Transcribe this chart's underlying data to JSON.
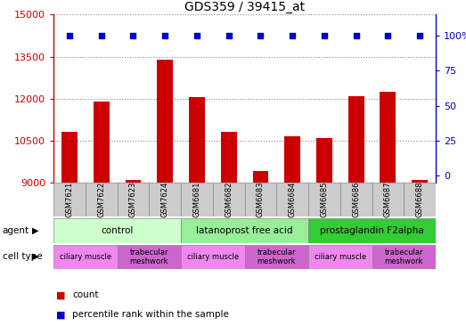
{
  "title": "GDS359 / 39415_at",
  "samples": [
    "GSM7621",
    "GSM7622",
    "GSM7623",
    "GSM7624",
    "GSM6681",
    "GSM6682",
    "GSM6683",
    "GSM6684",
    "GSM6685",
    "GSM6686",
    "GSM6687",
    "GSM6688"
  ],
  "counts": [
    10800,
    11900,
    9100,
    13400,
    12050,
    10800,
    9400,
    10650,
    10600,
    12100,
    12250,
    9100
  ],
  "percentiles": [
    100,
    100,
    100,
    100,
    100,
    100,
    100,
    100,
    100,
    100,
    100,
    100
  ],
  "ylim": [
    9000,
    15000
  ],
  "yticks_left": [
    9000,
    10500,
    12000,
    13500,
    15000
  ],
  "yticks_right": [
    0,
    25,
    50,
    75,
    100
  ],
  "bar_color": "#cc0000",
  "dot_color": "#0000cc",
  "agent_groups": [
    {
      "label": "control",
      "start": 0,
      "end": 3,
      "color": "#ccffcc"
    },
    {
      "label": "latanoprost free acid",
      "start": 4,
      "end": 7,
      "color": "#99ee99"
    },
    {
      "label": "prostaglandin F2alpha",
      "start": 8,
      "end": 11,
      "color": "#33cc33"
    }
  ],
  "cell_type_groups": [
    {
      "label": "ciliary muscle",
      "start": 0,
      "end": 1,
      "color": "#ee88ee"
    },
    {
      "label": "trabecular\nmeshwork",
      "start": 2,
      "end": 3,
      "color": "#cc66cc"
    },
    {
      "label": "ciliary muscle",
      "start": 4,
      "end": 5,
      "color": "#ee88ee"
    },
    {
      "label": "trabecular\nmeshwork",
      "start": 6,
      "end": 7,
      "color": "#cc66cc"
    },
    {
      "label": "ciliary muscle",
      "start": 8,
      "end": 9,
      "color": "#ee88ee"
    },
    {
      "label": "trabecular\nmeshwork",
      "start": 10,
      "end": 11,
      "color": "#cc66cc"
    }
  ],
  "xlabel_color": "#cc0000",
  "right_axis_color": "#0000cc",
  "background_color": "#ffffff",
  "grid_color": "#888888",
  "sample_box_color": "#cccccc"
}
